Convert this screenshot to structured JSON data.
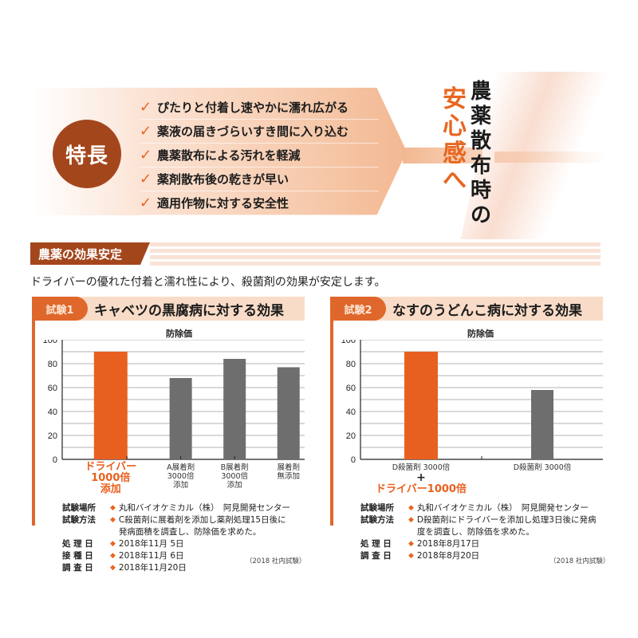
{
  "hero": {
    "badge": "特長",
    "features": [
      "ぴたりと付着し速やかに濡れ広がる",
      "薬液の届きづらいすき間に入り込む",
      "農薬散布による汚れを軽減",
      "薬剤散布後の乾きが早い",
      "適用作物に対する安全性"
    ],
    "check_icon": "✓",
    "tagline_black": [
      "農",
      "薬",
      "散",
      "布",
      "時",
      "の"
    ],
    "tagline_orange": [
      "安",
      "心",
      "感",
      "へ"
    ]
  },
  "section": {
    "title": "農薬の効果安定",
    "lead": "ドライバーの優れた付着と濡れ性により、殺菌剤の効果が安定します。"
  },
  "colors": {
    "accent": "#e0672b",
    "brand_dark": "#a4461c",
    "bar_gray": "#6e6e6e",
    "bar_orange": "#e8601f"
  },
  "trials": [
    {
      "pill": "試験1",
      "title": "キャベツの黒腐病に対する効果",
      "details": [
        {
          "key": "試験場所",
          "value": "丸和バイオケミカル（株）　阿見開発センター"
        },
        {
          "key": "試験方法",
          "value": "C殺菌剤に展着剤を添加し薬剤処理15日後に",
          "value2": "発病面積を調査し、防除価を求めた。"
        },
        {
          "key": "処 理 日",
          "value": "2018年11月 5日"
        },
        {
          "key": "接 種 日",
          "value": "2018年11月 6日"
        },
        {
          "key": "調 査 日",
          "value": "2018年11月20日"
        }
      ],
      "note": "（2018 社内試験）"
    },
    {
      "pill": "試験2",
      "title": "なすのうどんこ病に対する効果",
      "details": [
        {
          "key": "試験場所",
          "value": "丸和バイオケミカル（株）　阿見開発センター"
        },
        {
          "key": "試験方法",
          "value": "D殺菌剤にドライバーを添加し処理3日後に発病",
          "value2": "度を調査し、防除価を求めた。"
        },
        {
          "key": "処 理 日",
          "value": "2018年8月17日"
        },
        {
          "key": "調 査 日",
          "value": "2018年8月20日"
        }
      ],
      "note": "（2018 社内試験）"
    }
  ],
  "chart_data": [
    {
      "type": "bar",
      "title": "防除価",
      "categories": [
        "ドライバー1000倍添加",
        "A展着剤3000倍添加",
        "B展着剤3000倍添加",
        "展着剤無添加"
      ],
      "category_lines": [
        [
          "ドライバー",
          "1000倍",
          "添加"
        ],
        [
          "A展着剤",
          "3000倍",
          "添加"
        ],
        [
          "B展着剤",
          "3000倍",
          "添加"
        ],
        [
          "展着剤",
          "無添加"
        ]
      ],
      "values": [
        90,
        68,
        84,
        77
      ],
      "highlight_index": 0,
      "xlabel": "",
      "ylabel": "防除価",
      "ylim": [
        0,
        100
      ],
      "yticks": [
        0,
        20,
        40,
        60,
        80,
        100
      ],
      "grid": true
    },
    {
      "type": "bar",
      "title": "防除価",
      "categories": [
        "D殺菌剤 3000倍 + ドライバー1000倍",
        "D殺菌剤 3000倍"
      ],
      "category_lines": [
        [
          "D殺菌剤 3000倍",
          "+",
          "ドライバー1000倍"
        ],
        [
          "D殺菌剤 3000倍"
        ]
      ],
      "values": [
        90,
        58
      ],
      "highlight_index": 0,
      "xlabel": "",
      "ylabel": "防除価",
      "ylim": [
        0,
        100
      ],
      "yticks": [
        0,
        20,
        40,
        60,
        80,
        100
      ],
      "grid": true
    }
  ]
}
